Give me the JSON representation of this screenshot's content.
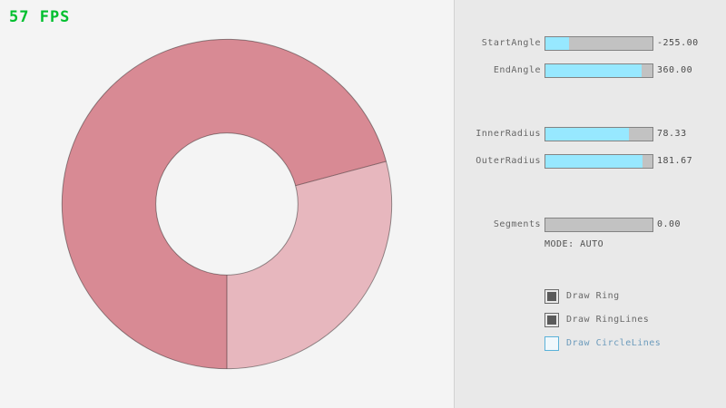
{
  "fps": {
    "text": "57 FPS",
    "color": "#00bf2e"
  },
  "ring": {
    "colors": {
      "single_fill": "#e7b7be",
      "overlap_fill": "#d88a94",
      "outline": "#000000"
    }
  },
  "panel": {
    "sliders": [
      {
        "label": "StartAngle",
        "value": "-255.00",
        "fill_percent": 21.7
      },
      {
        "label": "EndAngle",
        "value": "360.00",
        "fill_percent": 90
      },
      {
        "label": "InnerRadius",
        "value": "78.33",
        "fill_percent": 78.3
      },
      {
        "label": "OuterRadius",
        "value": "181.67",
        "fill_percent": 90.8
      },
      {
        "label": "Segments",
        "value": "0.00",
        "fill_percent": 0
      }
    ],
    "mode_text": "MODE: AUTO",
    "checkboxes": [
      {
        "label": "Draw Ring",
        "checked": true,
        "focused": false
      },
      {
        "label": "Draw RingLines",
        "checked": true,
        "focused": false
      },
      {
        "label": "Draw CircleLines",
        "checked": false,
        "focused": true
      }
    ],
    "accent_color": "#97e8ff",
    "focus_border_color": "#5bb2d9",
    "focus_text_color": "#6c9bbc"
  }
}
